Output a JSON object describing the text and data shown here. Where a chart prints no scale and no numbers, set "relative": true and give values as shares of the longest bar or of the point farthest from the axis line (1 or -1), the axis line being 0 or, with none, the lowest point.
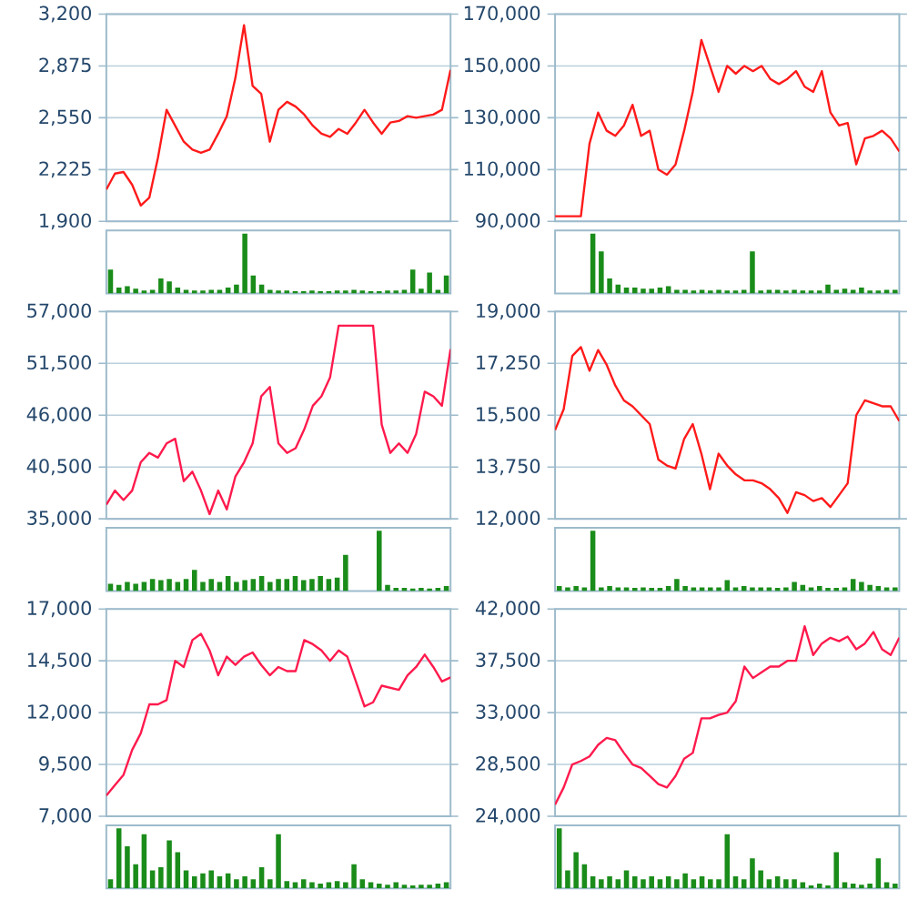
{
  "chart_data": [
    {
      "type": "line",
      "categories": [
        null,
        null,
        null,
        null,
        null,
        null,
        null,
        null,
        null,
        null,
        null,
        null,
        null,
        null,
        null,
        null,
        null,
        null,
        null,
        null,
        null,
        null,
        null,
        null,
        null,
        null,
        null,
        null,
        null,
        null,
        null,
        null,
        null,
        null,
        null,
        null,
        null,
        null,
        null,
        null,
        null
      ],
      "ylim": [
        1900,
        3200
      ],
      "yticks": [
        {
          "value": 1900,
          "label": "1,900"
        },
        {
          "value": 2225,
          "label": "2,225"
        },
        {
          "value": 2550,
          "label": "2,550"
        },
        {
          "value": 2875,
          "label": "2,875"
        },
        {
          "value": 3200,
          "label": "3,200"
        }
      ],
      "grid": "y",
      "tick_labels": "y",
      "color": "#ff1a1a",
      "values": [
        2100,
        2200,
        2210,
        2130,
        2000,
        2050,
        2300,
        2600,
        2500,
        2400,
        2350,
        2330,
        2350,
        2450,
        2560,
        2800,
        3130,
        2750,
        2700,
        2400,
        2600,
        2650,
        2620,
        2570,
        2500,
        2450,
        2430,
        2480,
        2450,
        2520,
        2600,
        2520,
        2450,
        2520,
        2530,
        2560,
        2550,
        2560,
        2570,
        2600,
        2850
      ]
    },
    {
      "type": "line",
      "categories": [
        null,
        null,
        null,
        null,
        null,
        null,
        null,
        null,
        null,
        null,
        null,
        null,
        null,
        null,
        null,
        null,
        null,
        null,
        null,
        null,
        null,
        null,
        null,
        null,
        null,
        null,
        null,
        null,
        null,
        null,
        null,
        null,
        null,
        null,
        null,
        null,
        null,
        null,
        null,
        null,
        null
      ],
      "ylim": [
        90000,
        170000
      ],
      "yticks": [
        {
          "value": 90000,
          "label": "90,000"
        },
        {
          "value": 110000,
          "label": "110,000"
        },
        {
          "value": 130000,
          "label": "130,000"
        },
        {
          "value": 150000,
          "label": "150,000"
        },
        {
          "value": 170000,
          "label": "170,000"
        }
      ],
      "grid": "y",
      "tick_labels": "y",
      "color": "#ff1a1a",
      "values": [
        92000,
        92000,
        92000,
        92000,
        120000,
        132000,
        125000,
        123000,
        127000,
        135000,
        123000,
        125000,
        110000,
        108000,
        112000,
        125000,
        140000,
        160000,
        150000,
        140000,
        150000,
        147000,
        150000,
        148000,
        150000,
        145000,
        143000,
        145000,
        148000,
        142000,
        140000,
        148000,
        132000,
        127000,
        128000,
        112000,
        122000,
        123000,
        125000,
        122000,
        117000
      ]
    },
    {
      "type": "bar",
      "relative": true,
      "categories": [
        null,
        null,
        null,
        null,
        null,
        null,
        null,
        null,
        null,
        null,
        null,
        null,
        null,
        null,
        null,
        null,
        null,
        null,
        null,
        null,
        null,
        null,
        null,
        null,
        null,
        null,
        null,
        null,
        null,
        null,
        null,
        null,
        null,
        null,
        null,
        null,
        null,
        null,
        null,
        null,
        null
      ],
      "tick_labels": false,
      "color": "#1a8c1a",
      "values": [
        0.4,
        0.1,
        0.12,
        0.08,
        0.05,
        0.06,
        0.25,
        0.2,
        0.1,
        0.06,
        0.05,
        0.05,
        0.06,
        0.06,
        0.1,
        0.15,
        1.0,
        0.3,
        0.15,
        0.06,
        0.05,
        0.05,
        0.04,
        0.04,
        0.05,
        0.04,
        0.04,
        0.05,
        0.05,
        0.06,
        0.05,
        0.04,
        0.04,
        0.05,
        0.05,
        0.06,
        0.4,
        0.08,
        0.35,
        0.06,
        0.3
      ]
    },
    {
      "type": "bar",
      "relative": true,
      "categories": [
        null,
        null,
        null,
        null,
        null,
        null,
        null,
        null,
        null,
        null,
        null,
        null,
        null,
        null,
        null,
        null,
        null,
        null,
        null,
        null,
        null,
        null,
        null,
        null,
        null,
        null,
        null,
        null,
        null,
        null,
        null,
        null,
        null,
        null,
        null,
        null,
        null,
        null,
        null,
        null,
        null
      ],
      "tick_labels": false,
      "color": "#1a8c1a",
      "values": [
        0,
        0,
        0,
        0,
        1.0,
        0.7,
        0.25,
        0.15,
        0.1,
        0.1,
        0.08,
        0.08,
        0.1,
        0.12,
        0.06,
        0.06,
        0.05,
        0.06,
        0.05,
        0.06,
        0.05,
        0.05,
        0.06,
        0.7,
        0.05,
        0.06,
        0.06,
        0.05,
        0.06,
        0.05,
        0.05,
        0.05,
        0.15,
        0.06,
        0.08,
        0.06,
        0.1,
        0.05,
        0.05,
        0.06,
        0.06
      ]
    },
    {
      "type": "line",
      "categories": [
        null,
        null,
        null,
        null,
        null,
        null,
        null,
        null,
        null,
        null,
        null,
        null,
        null,
        null,
        null,
        null,
        null,
        null,
        null,
        null,
        null,
        null,
        null,
        null,
        null,
        null,
        null,
        null,
        null,
        null,
        null,
        null,
        null,
        null,
        null,
        null,
        null,
        null,
        null,
        null,
        null
      ],
      "ylim": [
        35000,
        57000
      ],
      "yticks": [
        {
          "value": 35000,
          "label": "35,000"
        },
        {
          "value": 40500,
          "label": "40,500"
        },
        {
          "value": 46000,
          "label": "46,000"
        },
        {
          "value": 51500,
          "label": "51,500"
        },
        {
          "value": 57000,
          "label": "57,000"
        }
      ],
      "grid": "y",
      "tick_labels": "y",
      "color": "#ff1a4d",
      "values": [
        36500,
        38000,
        37000,
        38000,
        41000,
        42000,
        41500,
        43000,
        43500,
        39000,
        40000,
        38000,
        35500,
        38000,
        36000,
        39500,
        41000,
        43000,
        48000,
        49000,
        43000,
        42000,
        42500,
        44500,
        47000,
        48000,
        50000,
        55500,
        55500,
        55500,
        55500,
        55500,
        45000,
        42000,
        43000,
        42000,
        44000,
        48500,
        48000,
        47000,
        53000
      ]
    },
    {
      "type": "line",
      "categories": [
        null,
        null,
        null,
        null,
        null,
        null,
        null,
        null,
        null,
        null,
        null,
        null,
        null,
        null,
        null,
        null,
        null,
        null,
        null,
        null,
        null,
        null,
        null,
        null,
        null,
        null,
        null,
        null,
        null,
        null,
        null,
        null,
        null,
        null,
        null,
        null,
        null,
        null,
        null,
        null,
        null
      ],
      "ylim": [
        12000,
        19000
      ],
      "yticks": [
        {
          "value": 12000,
          "label": "12,000"
        },
        {
          "value": 13750,
          "label": "13,750"
        },
        {
          "value": 15500,
          "label": "15,500"
        },
        {
          "value": 17250,
          "label": "17,250"
        },
        {
          "value": 19000,
          "label": "19,000"
        }
      ],
      "grid": "y",
      "tick_labels": "y",
      "color": "#ff1a1a",
      "values": [
        15000,
        15700,
        17500,
        17800,
        17000,
        17700,
        17200,
        16500,
        16000,
        15800,
        15500,
        15200,
        14000,
        13800,
        13700,
        14700,
        15200,
        14200,
        13000,
        14200,
        13800,
        13500,
        13300,
        13300,
        13200,
        13000,
        12700,
        12200,
        12900,
        12800,
        12600,
        12700,
        12400,
        12800,
        13200,
        15500,
        16000,
        15900,
        15800,
        15800,
        15300
      ]
    },
    {
      "type": "bar",
      "relative": true,
      "categories": [
        null,
        null,
        null,
        null,
        null,
        null,
        null,
        null,
        null,
        null,
        null,
        null,
        null,
        null,
        null,
        null,
        null,
        null,
        null,
        null,
        null,
        null,
        null,
        null,
        null,
        null,
        null,
        null,
        null,
        null,
        null,
        null,
        null,
        null,
        null,
        null,
        null,
        null,
        null,
        null,
        null
      ],
      "tick_labels": false,
      "color": "#1a8c1a",
      "values": [
        0.12,
        0.1,
        0.15,
        0.12,
        0.15,
        0.2,
        0.18,
        0.2,
        0.15,
        0.2,
        0.35,
        0.15,
        0.2,
        0.15,
        0.25,
        0.15,
        0.18,
        0.2,
        0.25,
        0.15,
        0.2,
        0.2,
        0.25,
        0.18,
        0.2,
        0.25,
        0.2,
        0.22,
        0.6,
        0,
        0,
        0,
        1.0,
        0.1,
        0.05,
        0.05,
        0.04,
        0.05,
        0.04,
        0.05,
        0.08
      ]
    },
    {
      "type": "bar",
      "relative": true,
      "categories": [
        null,
        null,
        null,
        null,
        null,
        null,
        null,
        null,
        null,
        null,
        null,
        null,
        null,
        null,
        null,
        null,
        null,
        null,
        null,
        null,
        null,
        null,
        null,
        null,
        null,
        null,
        null,
        null,
        null,
        null,
        null,
        null,
        null,
        null,
        null,
        null,
        null,
        null,
        null,
        null,
        null
      ],
      "tick_labels": false,
      "color": "#1a8c1a",
      "values": [
        0.08,
        0.06,
        0.08,
        0.06,
        1.0,
        0.06,
        0.08,
        0.06,
        0.06,
        0.05,
        0.06,
        0.05,
        0.05,
        0.08,
        0.2,
        0.08,
        0.06,
        0.06,
        0.06,
        0.06,
        0.18,
        0.06,
        0.08,
        0.06,
        0.06,
        0.06,
        0.05,
        0.06,
        0.15,
        0.1,
        0.06,
        0.08,
        0.05,
        0.05,
        0.06,
        0.2,
        0.15,
        0.1,
        0.08,
        0.06,
        0.06
      ]
    },
    {
      "type": "line",
      "categories": [
        null,
        null,
        null,
        null,
        null,
        null,
        null,
        null,
        null,
        null,
        null,
        null,
        null,
        null,
        null,
        null,
        null,
        null,
        null,
        null,
        null,
        null,
        null,
        null,
        null,
        null,
        null,
        null,
        null,
        null,
        null,
        null,
        null,
        null,
        null,
        null,
        null,
        null,
        null,
        null,
        null
      ],
      "ylim": [
        7000,
        17000
      ],
      "yticks": [
        {
          "value": 7000,
          "label": "7,000"
        },
        {
          "value": 9500,
          "label": "9,500"
        },
        {
          "value": 12000,
          "label": "12,000"
        },
        {
          "value": 14500,
          "label": "14,500"
        },
        {
          "value": 17000,
          "label": "17,000"
        }
      ],
      "grid": "y",
      "tick_labels": "y",
      "color": "#ff1a4d",
      "values": [
        8000,
        8500,
        9000,
        10200,
        11000,
        12400,
        12400,
        12600,
        14500,
        14200,
        15500,
        15800,
        15000,
        13800,
        14700,
        14300,
        14700,
        14900,
        14300,
        13800,
        14200,
        14000,
        14000,
        15500,
        15300,
        15000,
        14500,
        15000,
        14700,
        13500,
        12300,
        12500,
        13300,
        13200,
        13100,
        13800,
        14200,
        14800,
        14200,
        13500,
        13700
      ]
    },
    {
      "type": "line",
      "categories": [
        null,
        null,
        null,
        null,
        null,
        null,
        null,
        null,
        null,
        null,
        null,
        null,
        null,
        null,
        null,
        null,
        null,
        null,
        null,
        null,
        null,
        null,
        null,
        null,
        null,
        null,
        null,
        null,
        null,
        null,
        null,
        null,
        null,
        null,
        null,
        null,
        null,
        null,
        null,
        null,
        null
      ],
      "ylim": [
        24000,
        42000
      ],
      "yticks": [
        {
          "value": 24000,
          "label": "24,000"
        },
        {
          "value": 28500,
          "label": "28,500"
        },
        {
          "value": 33000,
          "label": "33,000"
        },
        {
          "value": 37500,
          "label": "37,500"
        },
        {
          "value": 42000,
          "label": "42,000"
        }
      ],
      "grid": "y",
      "tick_labels": "y",
      "color": "#ff1a4d",
      "values": [
        25000,
        26500,
        28500,
        28800,
        29200,
        30200,
        30800,
        30600,
        29500,
        28500,
        28200,
        27500,
        26800,
        26500,
        27500,
        29000,
        29500,
        32500,
        32500,
        32800,
        33000,
        34000,
        37000,
        36000,
        36500,
        37000,
        37000,
        37500,
        37500,
        40500,
        38000,
        39000,
        39500,
        39200,
        39600,
        38500,
        39000,
        40000,
        38500,
        38000,
        39500
      ]
    },
    {
      "type": "bar",
      "relative": true,
      "categories": [
        null,
        null,
        null,
        null,
        null,
        null,
        null,
        null,
        null,
        null,
        null,
        null,
        null,
        null,
        null,
        null,
        null,
        null,
        null,
        null,
        null,
        null,
        null,
        null,
        null,
        null,
        null,
        null,
        null,
        null,
        null,
        null,
        null,
        null,
        null,
        null,
        null,
        null,
        null,
        null,
        null
      ],
      "tick_labels": false,
      "color": "#1a8c1a",
      "values": [
        0.15,
        1.0,
        0.7,
        0.4,
        0.9,
        0.3,
        0.35,
        0.8,
        0.6,
        0.3,
        0.2,
        0.25,
        0.3,
        0.2,
        0.25,
        0.15,
        0.2,
        0.15,
        0.35,
        0.15,
        0.9,
        0.12,
        0.1,
        0.15,
        0.1,
        0.08,
        0.1,
        0.12,
        0.1,
        0.4,
        0.15,
        0.1,
        0.08,
        0.06,
        0.1,
        0.06,
        0.05,
        0.06,
        0.06,
        0.08,
        0.1
      ]
    },
    {
      "type": "bar",
      "relative": true,
      "categories": [
        null,
        null,
        null,
        null,
        null,
        null,
        null,
        null,
        null,
        null,
        null,
        null,
        null,
        null,
        null,
        null,
        null,
        null,
        null,
        null,
        null,
        null,
        null,
        null,
        null,
        null,
        null,
        null,
        null,
        null,
        null,
        null,
        null,
        null,
        null,
        null,
        null,
        null,
        null,
        null,
        null
      ],
      "tick_labels": false,
      "color": "#1a8c1a",
      "values": [
        1.0,
        0.3,
        0.6,
        0.4,
        0.2,
        0.15,
        0.2,
        0.15,
        0.3,
        0.2,
        0.15,
        0.2,
        0.15,
        0.2,
        0.15,
        0.25,
        0.15,
        0.2,
        0.15,
        0.15,
        0.9,
        0.2,
        0.15,
        0.5,
        0.3,
        0.15,
        0.2,
        0.15,
        0.15,
        0.1,
        0.05,
        0.08,
        0.05,
        0.6,
        0.1,
        0.08,
        0.06,
        0.08,
        0.5,
        0.1,
        0.08
      ]
    }
  ]
}
